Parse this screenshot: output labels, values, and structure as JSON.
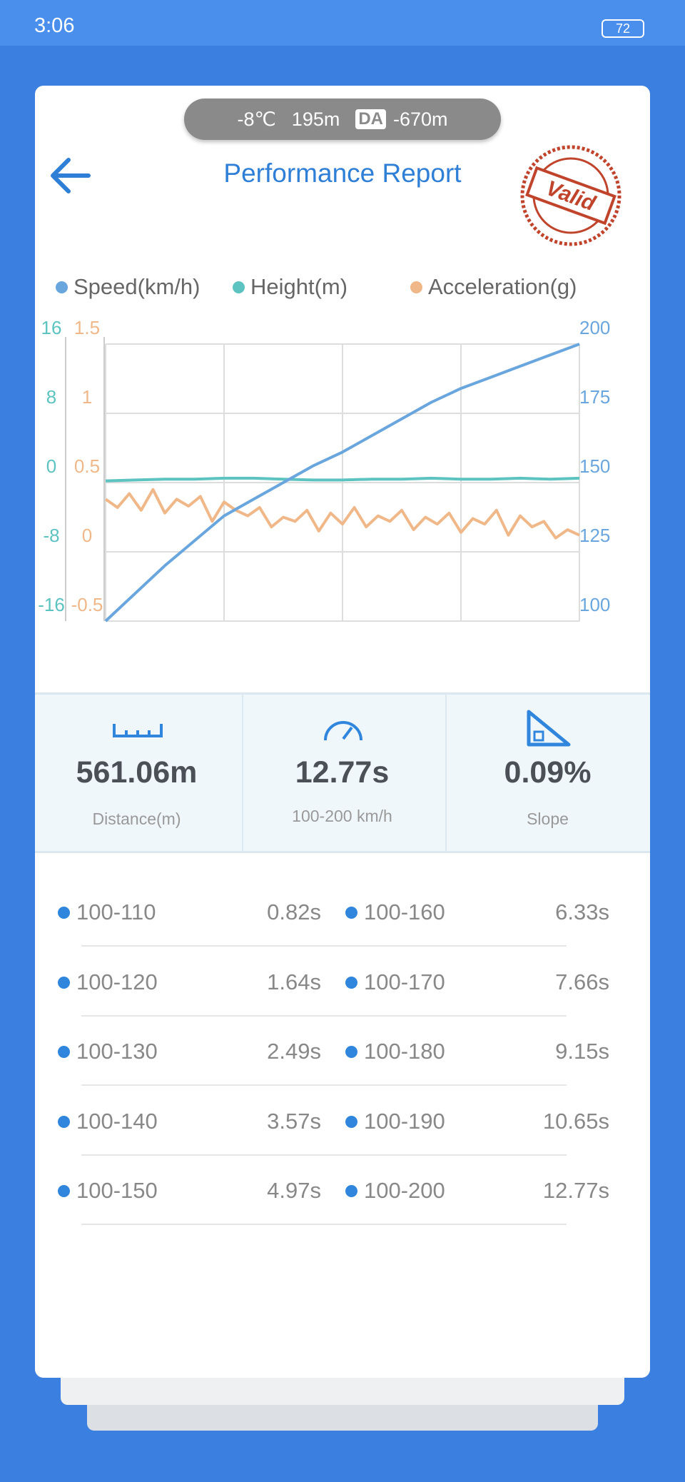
{
  "status_bar": {
    "time": "3:06",
    "battery": "72"
  },
  "conditions": {
    "temperature": "-8℃",
    "altitude": "195m",
    "da_label": "DA",
    "density_altitude": "-670m"
  },
  "header": {
    "title": "Performance Report",
    "stamp": "Valid"
  },
  "chart_data": {
    "type": "line",
    "series": [
      {
        "name": "Speed(km/h)",
        "color": "#6aa6de",
        "axis": "y2",
        "values": [
          100,
          110,
          120,
          129,
          138,
          144,
          150,
          156,
          161,
          167,
          173,
          179,
          184,
          188,
          192,
          196,
          200
        ]
      },
      {
        "name": "Height(m)",
        "color": "#5cc3c0",
        "axis": "y",
        "values": [
          0.2,
          0.3,
          0.4,
          0.4,
          0.5,
          0.5,
          0.4,
          0.3,
          0.3,
          0.4,
          0.4,
          0.5,
          0.4,
          0.4,
          0.5,
          0.4,
          0.5
        ]
      },
      {
        "name": "Acceleration(g)",
        "color": "#f0b888",
        "axis": "y3",
        "values": [
          0.38,
          0.32,
          0.42,
          0.3,
          0.45,
          0.28,
          0.38,
          0.33,
          0.4,
          0.22,
          0.36,
          0.3,
          0.26,
          0.32,
          0.18,
          0.25,
          0.22,
          0.3,
          0.15,
          0.28,
          0.2,
          0.32,
          0.18,
          0.26,
          0.22,
          0.3,
          0.16,
          0.25,
          0.2,
          0.28,
          0.14,
          0.24,
          0.2,
          0.3,
          0.12,
          0.26,
          0.18,
          0.22,
          0.1,
          0.16,
          0.12
        ]
      }
    ],
    "ylim": [
      -16,
      16
    ],
    "yticks": [
      -16,
      -8,
      0,
      8,
      16
    ],
    "y2lim": [
      100,
      200
    ],
    "y2ticks": [
      100,
      125,
      150,
      175,
      200
    ],
    "y3lim": [
      -0.5,
      1.5
    ],
    "y3ticks": [
      -0.5,
      0,
      0.5,
      1,
      1.5
    ],
    "grid": true
  },
  "summary": [
    {
      "value": "561.06m",
      "label": "Distance(m)"
    },
    {
      "value": "12.77s",
      "label": "100-200 km/h"
    },
    {
      "value": "0.09%",
      "label": "Slope"
    }
  ],
  "splits": [
    {
      "range": "100-110",
      "time": "0.82s"
    },
    {
      "range": "100-120",
      "time": "1.64s"
    },
    {
      "range": "100-130",
      "time": "2.49s"
    },
    {
      "range": "100-140",
      "time": "3.57s"
    },
    {
      "range": "100-150",
      "time": "4.97s"
    },
    {
      "range": "100-160",
      "time": "6.33s"
    },
    {
      "range": "100-170",
      "time": "7.66s"
    },
    {
      "range": "100-180",
      "time": "9.15s"
    },
    {
      "range": "100-190",
      "time": "10.65s"
    },
    {
      "range": "100-200",
      "time": "12.77s"
    }
  ]
}
